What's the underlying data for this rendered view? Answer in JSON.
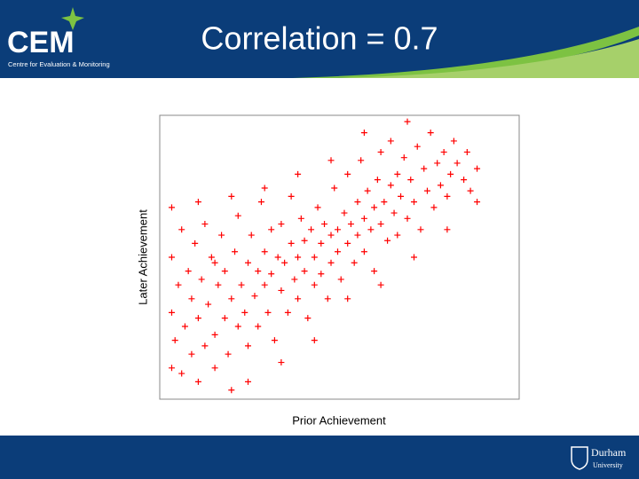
{
  "header": {
    "logo": "CEM",
    "logo_subtitle": "Centre for Evaluation & Monitoring"
  },
  "chart_data": {
    "type": "scatter",
    "title": "Correlation = 0.7",
    "x_label": "Prior Achievement",
    "y_label": "Later Achievement",
    "color": "#ff0000",
    "xlim": [
      0,
      100
    ],
    "ylim": [
      0,
      100
    ],
    "x": [
      2,
      2,
      2,
      2,
      3,
      4,
      5,
      5,
      6,
      7,
      8,
      8,
      9,
      10,
      10,
      11,
      12,
      12,
      13,
      14,
      15,
      15,
      16,
      17,
      18,
      18,
      19,
      20,
      20,
      21,
      22,
      22,
      23,
      24,
      25,
      25,
      26,
      27,
      28,
      28,
      29,
      30,
      30,
      31,
      32,
      32,
      33,
      34,
      35,
      35,
      36,
      37,
      38,
      38,
      39,
      40,
      40,
      41,
      42,
      42,
      43,
      44,
      45,
      45,
      46,
      47,
      47,
      48,
      49,
      50,
      50,
      51,
      52,
      52,
      53,
      54,
      55,
      55,
      56,
      57,
      58,
      58,
      59,
      60,
      60,
      61,
      62,
      63,
      63,
      64,
      65,
      65,
      66,
      67,
      68,
      68,
      69,
      70,
      70,
      71,
      72,
      73,
      73,
      74,
      75,
      76,
      77,
      78,
      79,
      80,
      81,
      82,
      83,
      84,
      85,
      86,
      87,
      88,
      90,
      91,
      92,
      94,
      94,
      15,
      25,
      35,
      45,
      55,
      65,
      75,
      85,
      60,
      50,
      40,
      30,
      20,
      10
    ],
    "y": [
      10,
      30,
      50,
      68,
      20,
      40,
      60,
      8,
      25,
      45,
      15,
      35,
      55,
      5,
      28,
      42,
      18,
      62,
      33,
      50,
      22,
      10,
      40,
      58,
      28,
      45,
      15,
      2,
      35,
      52,
      25,
      65,
      40,
      30,
      48,
      18,
      58,
      36,
      45,
      25,
      70,
      40,
      52,
      30,
      60,
      44,
      20,
      50,
      38,
      62,
      48,
      30,
      55,
      72,
      42,
      50,
      35,
      64,
      45,
      56,
      28,
      60,
      50,
      40,
      68,
      55,
      44,
      62,
      35,
      58,
      48,
      75,
      60,
      52,
      42,
      66,
      55,
      80,
      62,
      48,
      70,
      58,
      85,
      64,
      52,
      74,
      60,
      68,
      45,
      78,
      62,
      88,
      70,
      56,
      76,
      92,
      66,
      80,
      58,
      72,
      86,
      99,
      64,
      78,
      70,
      90,
      60,
      82,
      74,
      95,
      68,
      84,
      76,
      88,
      72,
      80,
      92,
      84,
      78,
      88,
      74,
      82,
      70,
      48,
      5,
      12,
      20,
      35,
      40,
      50,
      60,
      95,
      85,
      80,
      75,
      72,
      70
    ]
  },
  "footer": {
    "logo_line1": "Durham",
    "logo_line2": "University"
  }
}
